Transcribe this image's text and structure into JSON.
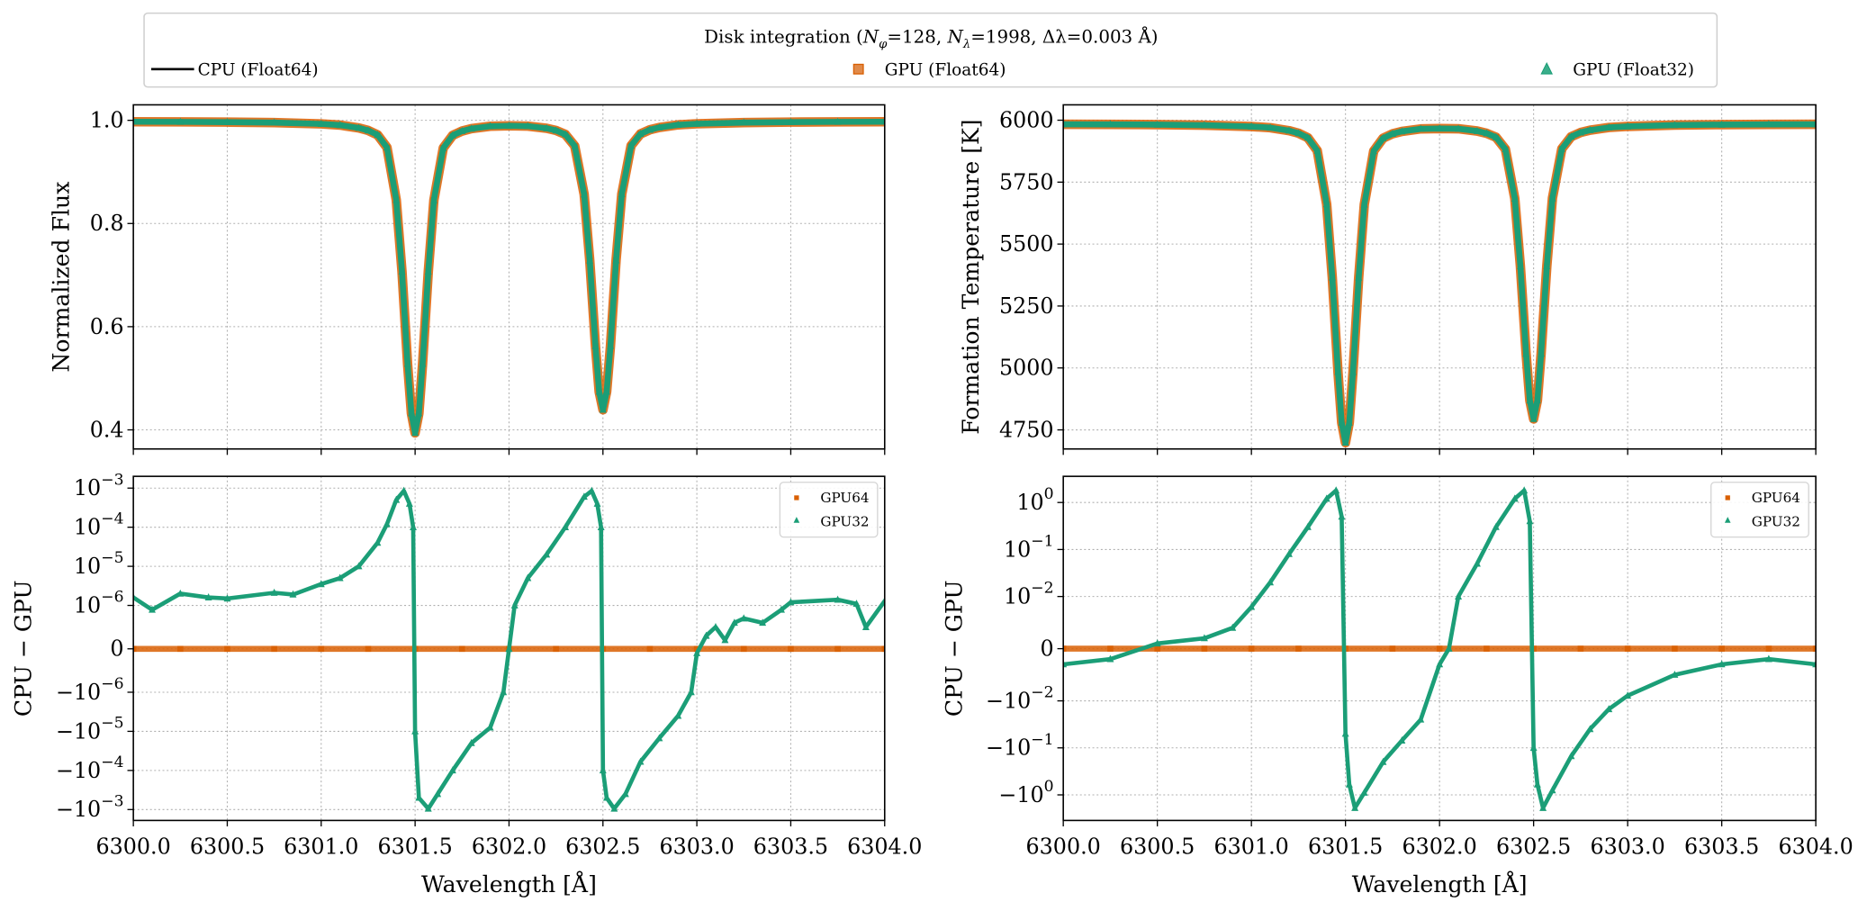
{
  "legend": {
    "title": {
      "prefix": "Disk integration (",
      "n_phi_sym": "N",
      "n_phi_sub": "φ",
      "n_phi_val": "=128, ",
      "n_lam_sym": "N",
      "n_lam_sub": "λ",
      "n_lam_val": "=1998, ",
      "dlam": "Δλ=0.003 Å)"
    }
  },
  "colors": {
    "cpu": "#000000",
    "gpu64": "#d95f02",
    "gpu32": "#1b9e77"
  },
  "chart_data": [
    {
      "type": "line+scatter",
      "ylabel": "Normalized Flux",
      "xlabel": "",
      "yscale": "linear",
      "xlim": [
        6300.0,
        6304.0
      ],
      "ylim": [
        0.363,
        1.03
      ],
      "grid": true,
      "xticks": [
        6300.0,
        6300.5,
        6301.0,
        6301.5,
        6302.0,
        6302.5,
        6303.0,
        6303.5,
        6304.0
      ],
      "yticks": [
        0.4,
        0.6,
        0.8,
        1.0
      ],
      "ytick_labels": [
        {
          "b": "0.4"
        },
        {
          "b": "0.6"
        },
        {
          "b": "0.8"
        },
        {
          "b": "1.0"
        }
      ],
      "x": [
        6300.0,
        6300.25,
        6300.5,
        6300.75,
        6301.0,
        6301.1,
        6301.2,
        6301.25,
        6301.3,
        6301.35,
        6301.4,
        6301.43,
        6301.46,
        6301.48,
        6301.5,
        6301.52,
        6301.54,
        6301.57,
        6301.6,
        6301.65,
        6301.7,
        6301.75,
        6301.8,
        6301.9,
        6302.0,
        6302.1,
        6302.2,
        6302.25,
        6302.3,
        6302.35,
        6302.4,
        6302.43,
        6302.46,
        6302.48,
        6302.5,
        6302.52,
        6302.54,
        6302.57,
        6302.6,
        6302.65,
        6302.7,
        6302.75,
        6302.8,
        6302.9,
        6303.0,
        6303.25,
        6303.5,
        6303.75,
        6304.0
      ],
      "series": [
        {
          "name": "CPU (Float64)",
          "marker": "line",
          "values": [
            0.9973,
            0.9971,
            0.9966,
            0.9956,
            0.993,
            0.9908,
            0.9853,
            0.9804,
            0.9719,
            0.9473,
            0.8458,
            0.7071,
            0.5281,
            0.4322,
            0.3941,
            0.4321,
            0.528,
            0.7069,
            0.8453,
            0.9465,
            0.971,
            0.9792,
            0.9838,
            0.9885,
            0.9893,
            0.9887,
            0.9845,
            0.9803,
            0.9728,
            0.9501,
            0.8565,
            0.7283,
            0.5626,
            0.474,
            0.4389,
            0.4741,
            0.5628,
            0.7285,
            0.857,
            0.9508,
            0.9738,
            0.9817,
            0.9861,
            0.9913,
            0.9933,
            0.9957,
            0.9966,
            0.9971,
            0.9973
          ]
        },
        {
          "name": "GPU (Float64)",
          "marker": "square",
          "values": [
            0.9973,
            0.9971,
            0.9966,
            0.9956,
            0.993,
            0.9908,
            0.9853,
            0.9804,
            0.9719,
            0.9473,
            0.8458,
            0.7071,
            0.5281,
            0.4322,
            0.3941,
            0.4321,
            0.528,
            0.7069,
            0.8453,
            0.9465,
            0.971,
            0.9792,
            0.9838,
            0.9885,
            0.9893,
            0.9887,
            0.9845,
            0.9803,
            0.9728,
            0.9501,
            0.8565,
            0.7283,
            0.5626,
            0.474,
            0.4389,
            0.4741,
            0.5628,
            0.7285,
            0.857,
            0.9508,
            0.9738,
            0.9817,
            0.9861,
            0.9913,
            0.9933,
            0.9957,
            0.9966,
            0.9971,
            0.9973
          ]
        },
        {
          "name": "GPU (Float32)",
          "marker": "triangle",
          "values": [
            0.9973,
            0.9971,
            0.9966,
            0.9956,
            0.993,
            0.9908,
            0.9853,
            0.9804,
            0.9719,
            0.9473,
            0.8458,
            0.7071,
            0.5281,
            0.4322,
            0.3941,
            0.4321,
            0.528,
            0.7069,
            0.8453,
            0.9465,
            0.971,
            0.9792,
            0.9838,
            0.9885,
            0.9893,
            0.9887,
            0.9845,
            0.9803,
            0.9728,
            0.9501,
            0.8565,
            0.7283,
            0.5626,
            0.474,
            0.4389,
            0.4741,
            0.5628,
            0.7285,
            0.857,
            0.9508,
            0.9738,
            0.9817,
            0.9861,
            0.9913,
            0.9933,
            0.9957,
            0.9966,
            0.9971,
            0.9973
          ]
        }
      ]
    },
    {
      "type": "line+scatter",
      "ylabel": "Formation Temperature [K]",
      "xlabel": "",
      "yscale": "linear",
      "xlim": [
        6300.0,
        6304.0
      ],
      "ylim": [
        4673,
        6062
      ],
      "grid": true,
      "xticks": [
        6300.0,
        6300.5,
        6301.0,
        6301.5,
        6302.0,
        6302.5,
        6303.0,
        6303.5,
        6304.0
      ],
      "yticks": [
        4750,
        5000,
        5250,
        5500,
        5750,
        6000
      ],
      "ytick_labels": [
        {
          "b": "4750"
        },
        {
          "b": "5000"
        },
        {
          "b": "5250"
        },
        {
          "b": "5500"
        },
        {
          "b": "5750"
        },
        {
          "b": "6000"
        }
      ],
      "x": [
        6300.0,
        6300.25,
        6300.5,
        6300.75,
        6301.0,
        6301.1,
        6301.2,
        6301.25,
        6301.3,
        6301.35,
        6301.4,
        6301.43,
        6301.46,
        6301.48,
        6301.5,
        6301.52,
        6301.54,
        6301.57,
        6301.6,
        6301.65,
        6301.7,
        6301.75,
        6301.8,
        6301.9,
        6302.0,
        6302.1,
        6302.2,
        6302.25,
        6302.3,
        6302.35,
        6302.4,
        6302.43,
        6302.46,
        6302.48,
        6302.5,
        6302.52,
        6302.54,
        6302.57,
        6302.6,
        6302.65,
        6302.7,
        6302.75,
        6302.8,
        6302.9,
        6303.0,
        6303.25,
        6303.5,
        6303.75,
        6304.0
      ],
      "series": [
        {
          "name": "CPU (Float64)",
          "marker": "line",
          "values": [
            5983.5,
            5983.1,
            5982.0,
            5979.9,
            5974.4,
            5969.7,
            5957.9,
            5947.5,
            5929.4,
            5877.0,
            5660.8,
            5365.4,
            4984.1,
            4779.8,
            4698.7,
            4779.6,
            4983.9,
            5365.0,
            5659.7,
            5875.3,
            5927.5,
            5945.0,
            5954.8,
            5964.8,
            5966.5,
            5965.2,
            5956.2,
            5947.3,
            5931.3,
            5883.0,
            5683.6,
            5410.5,
            5057.6,
            4868.9,
            4794.1,
            4869.1,
            5058.0,
            5411.0,
            5684.7,
            5884.5,
            5933.5,
            5950.3,
            5959.7,
            5970.7,
            5975.0,
            5980.1,
            5982.0,
            5983.1,
            5983.5
          ]
        },
        {
          "name": "GPU (Float64)",
          "marker": "square",
          "values": [
            5983.5,
            5983.1,
            5982.0,
            5979.9,
            5974.4,
            5969.7,
            5957.9,
            5947.5,
            5929.4,
            5877.0,
            5660.8,
            5365.4,
            4984.1,
            4779.8,
            4698.7,
            4779.6,
            4983.9,
            5365.0,
            5659.7,
            5875.3,
            5927.5,
            5945.0,
            5954.8,
            5964.8,
            5966.5,
            5965.2,
            5956.2,
            5947.3,
            5931.3,
            5883.0,
            5683.6,
            5410.5,
            5057.6,
            4868.9,
            4794.1,
            4869.1,
            5058.0,
            5411.0,
            5684.7,
            5884.5,
            5933.5,
            5950.3,
            5959.7,
            5970.7,
            5975.0,
            5980.1,
            5982.0,
            5983.1,
            5983.5
          ]
        },
        {
          "name": "GPU (Float32)",
          "marker": "triangle",
          "values": [
            5983.5,
            5983.1,
            5982.0,
            5979.9,
            5974.4,
            5969.7,
            5957.9,
            5947.5,
            5929.4,
            5877.0,
            5660.8,
            5365.4,
            4984.1,
            4779.8,
            4698.7,
            4779.6,
            4983.9,
            5365.0,
            5659.7,
            5875.3,
            5927.5,
            5945.0,
            5954.8,
            5964.8,
            5966.5,
            5965.2,
            5956.2,
            5947.3,
            5931.3,
            5883.0,
            5683.6,
            5410.5,
            5057.6,
            4868.9,
            4794.1,
            4869.1,
            5058.0,
            5411.0,
            5684.7,
            5884.5,
            5933.5,
            5950.3,
            5959.7,
            5970.7,
            5975.0,
            5980.1,
            5982.0,
            5983.1,
            5983.5
          ]
        }
      ]
    },
    {
      "type": "scatter",
      "ylabel": "CPU − GPU",
      "xlabel": "Wavelength [Å]",
      "yscale": "symlog",
      "linthresh": 1e-06,
      "xlim": [
        6300.0,
        6304.0
      ],
      "ylim": [
        -0.0019,
        0.002
      ],
      "grid": true,
      "legend_position": "top-right",
      "xticks": [
        6300.0,
        6300.5,
        6301.0,
        6301.5,
        6302.0,
        6302.5,
        6303.0,
        6303.5,
        6304.0
      ],
      "xtick_labels": [
        "6300.0",
        "6300.5",
        "6301.0",
        "6301.5",
        "6302.0",
        "6302.5",
        "6303.0",
        "6303.5",
        "6304.0"
      ],
      "yticks": [
        -0.001,
        -0.0001,
        -1e-05,
        -1e-06,
        0,
        1e-06,
        1e-05,
        0.0001,
        0.001
      ],
      "ytick_labels": [
        {
          "b": "−10",
          "e": "−3"
        },
        {
          "b": "−10",
          "e": "−4"
        },
        {
          "b": "−10",
          "e": "−5"
        },
        {
          "b": "−10",
          "e": "−6"
        },
        {
          "b": "0"
        },
        {
          "b": "10",
          "e": "−6"
        },
        {
          "b": "10",
          "e": "−5"
        },
        {
          "b": "10",
          "e": "−4"
        },
        {
          "b": "10",
          "e": "−3"
        }
      ],
      "series": [
        {
          "name": "GPU64",
          "marker": "square",
          "x": [
            6300.0,
            6300.25,
            6300.5,
            6300.75,
            6301.0,
            6301.25,
            6301.5,
            6301.75,
            6302.0,
            6302.25,
            6302.5,
            6302.75,
            6303.0,
            6303.25,
            6303.5,
            6303.75,
            6304.0
          ],
          "values": [
            0,
            0,
            0,
            0,
            0,
            0,
            0,
            0,
            0,
            0,
            0,
            0,
            0,
            0,
            0,
            0,
            0
          ]
        },
        {
          "name": "GPU32",
          "marker": "triangle",
          "x": [
            6300.0,
            6300.1,
            6300.25,
            6300.4,
            6300.5,
            6300.75,
            6300.85,
            6301.0,
            6301.1,
            6301.2,
            6301.3,
            6301.35,
            6301.4,
            6301.44,
            6301.47,
            6301.49,
            6301.5,
            6301.52,
            6301.57,
            6301.62,
            6301.7,
            6301.8,
            6301.9,
            6301.97,
            6302.0,
            6302.03,
            6302.1,
            6302.2,
            6302.3,
            6302.4,
            6302.44,
            6302.47,
            6302.49,
            6302.5,
            6302.52,
            6302.56,
            6302.62,
            6302.7,
            6302.8,
            6302.9,
            6302.97,
            6303.0,
            6303.05,
            6303.1,
            6303.15,
            6303.2,
            6303.25,
            6303.35,
            6303.45,
            6303.5,
            6303.75,
            6303.85,
            6303.9,
            6304.0
          ],
          "values": [
            1.6e-06,
            9e-07,
            2e-06,
            1.6e-06,
            1.5e-06,
            2.1e-06,
            1.9e-06,
            3.5e-06,
            5e-06,
            1e-05,
            4e-05,
            0.00012,
            0.0005,
            0.00085,
            0.0004,
            0.0001,
            -1e-05,
            -0.0005,
            -0.00095,
            -0.0004,
            -0.0001,
            -2e-05,
            -8e-06,
            -1e-06,
            0,
            1e-06,
            5e-06,
            2e-05,
            0.0001,
            0.0006,
            0.00085,
            0.0004,
            0.0001,
            -0.0001,
            -0.0005,
            -0.00095,
            -0.0004,
            -6e-05,
            -1.5e-05,
            -4e-06,
            -1e-06,
            -1e-07,
            3e-07,
            5e-07,
            2e-07,
            6e-07,
            7e-07,
            6e-07,
            9e-07,
            1.2e-06,
            1.4e-06,
            1.1e-06,
            5e-07,
            1.3e-06
          ]
        }
      ]
    },
    {
      "type": "scatter",
      "ylabel": "CPU − GPU",
      "xlabel": "Wavelength [Å]",
      "yscale": "symlog",
      "linthresh": 0.01,
      "xlim": [
        6300.0,
        6304.0
      ],
      "ylim": [
        -3.5,
        3.6
      ],
      "grid": true,
      "legend_position": "top-right",
      "xticks": [
        6300.0,
        6300.5,
        6301.0,
        6301.5,
        6302.0,
        6302.5,
        6303.0,
        6303.5,
        6304.0
      ],
      "xtick_labels": [
        "6300.0",
        "6300.5",
        "6301.0",
        "6301.5",
        "6302.0",
        "6302.5",
        "6303.0",
        "6303.5",
        "6304.0"
      ],
      "yticks": [
        -1,
        -0.1,
        -0.01,
        0,
        0.01,
        0.1,
        1
      ],
      "ytick_labels": [
        {
          "b": "−10",
          "e": "0"
        },
        {
          "b": "−10",
          "e": "−1"
        },
        {
          "b": "−10",
          "e": "−2"
        },
        {
          "b": "0"
        },
        {
          "b": "10",
          "e": "−2"
        },
        {
          "b": "10",
          "e": "−1"
        },
        {
          "b": "10",
          "e": "0"
        }
      ],
      "series": [
        {
          "name": "GPU64",
          "marker": "square",
          "x": [
            6300.0,
            6300.25,
            6300.5,
            6300.75,
            6301.0,
            6301.25,
            6301.5,
            6301.75,
            6302.0,
            6302.25,
            6302.5,
            6302.75,
            6303.0,
            6303.25,
            6303.5,
            6303.75,
            6304.0
          ],
          "values": [
            0,
            0,
            0,
            0,
            0,
            0,
            0,
            0,
            0,
            0,
            0,
            0,
            0,
            0,
            0,
            0,
            0
          ]
        },
        {
          "name": "GPU32",
          "marker": "triangle",
          "x": [
            6300.0,
            6300.25,
            6300.5,
            6300.75,
            6300.9,
            6301.0,
            6301.1,
            6301.2,
            6301.3,
            6301.4,
            6301.45,
            6301.48,
            6301.5,
            6301.52,
            6301.55,
            6301.6,
            6301.7,
            6301.8,
            6301.9,
            6302.0,
            6302.05,
            6302.1,
            6302.2,
            6302.3,
            6302.4,
            6302.45,
            6302.48,
            6302.5,
            6302.52,
            6302.55,
            6302.6,
            6302.7,
            6302.8,
            6302.9,
            6303.0,
            6303.25,
            6303.5,
            6303.75,
            6304.0
          ],
          "values": [
            -0.003,
            -0.002,
            0.001,
            0.002,
            0.004,
            0.008,
            0.02,
            0.08,
            0.3,
            1.2,
            1.8,
            0.5,
            -0.05,
            -0.6,
            -1.9,
            -0.9,
            -0.2,
            -0.07,
            -0.025,
            -0.003,
            0,
            0.01,
            0.05,
            0.3,
            1.2,
            1.8,
            0.4,
            -0.1,
            -0.6,
            -1.9,
            -0.8,
            -0.15,
            -0.04,
            -0.015,
            -0.009,
            -0.005,
            -0.003,
            -0.002,
            -0.003
          ]
        }
      ]
    }
  ]
}
